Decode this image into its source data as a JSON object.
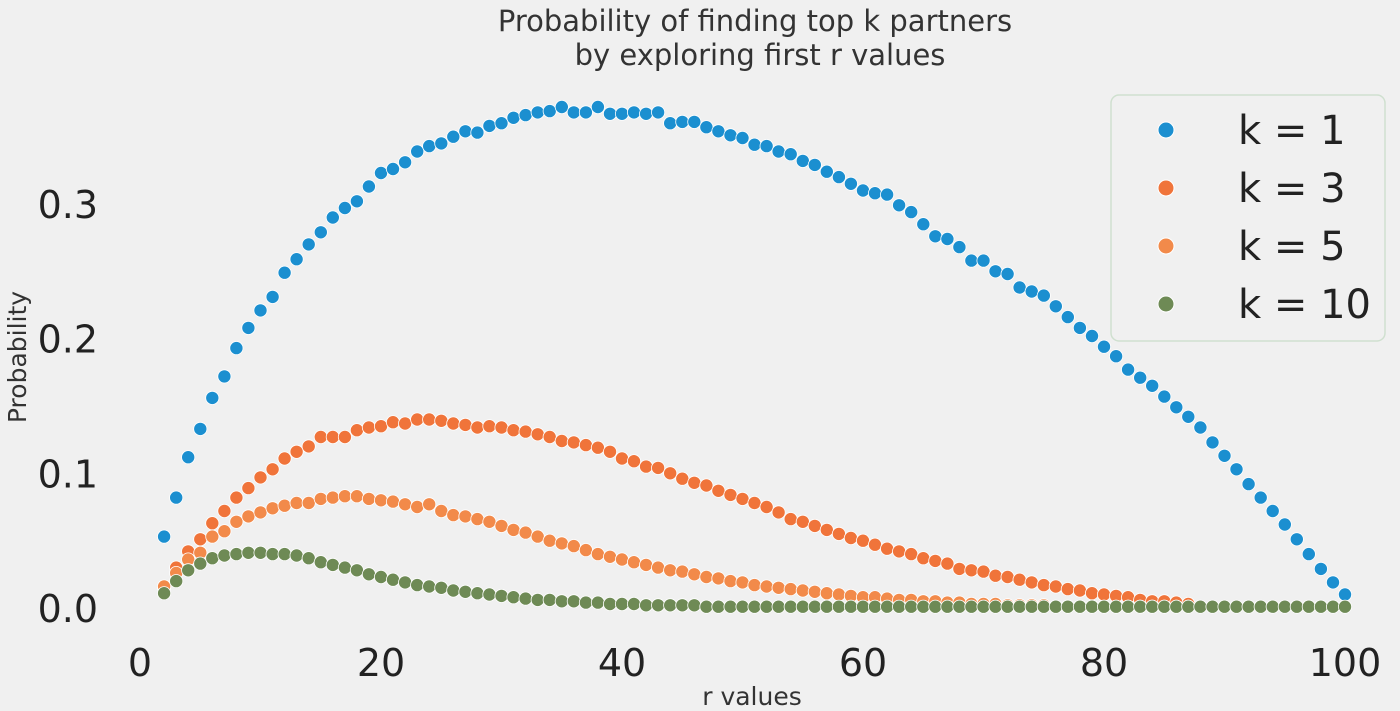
{
  "chart_data": {
    "type": "scatter",
    "title": "Probability of finding top k partners",
    "subtitle": "by exploring first r values",
    "xlabel": "r values",
    "ylabel": "Probability",
    "xlim": [
      -2,
      102
    ],
    "ylim": [
      -0.0143,
      0.38
    ],
    "x_ticks": [
      "0",
      "20",
      "40",
      "60",
      "80",
      "100"
    ],
    "y_ticks": [
      "0.0",
      "0.1",
      "0.2",
      "0.3"
    ],
    "grid": false,
    "legend_position": "top-right",
    "series": [
      {
        "name": "k = 1",
        "color": "#1b8fd0",
        "x": [
          2,
          3,
          4,
          5,
          6,
          7,
          8,
          9,
          10,
          11,
          12,
          13,
          14,
          15,
          16,
          17,
          18,
          19,
          20,
          21,
          22,
          23,
          24,
          25,
          26,
          27,
          28,
          29,
          30,
          31,
          32,
          33,
          34,
          35,
          36,
          37,
          38,
          39,
          40,
          41,
          42,
          43,
          44,
          45,
          46,
          47,
          48,
          49,
          50,
          51,
          52,
          53,
          54,
          55,
          56,
          57,
          58,
          59,
          60,
          61,
          62,
          63,
          64,
          65,
          66,
          67,
          68,
          69,
          70,
          71,
          72,
          73,
          74,
          75,
          76,
          77,
          78,
          79,
          80,
          81,
          82,
          83,
          84,
          85,
          86,
          87,
          88,
          89,
          90,
          91,
          92,
          93,
          94,
          95,
          96,
          97,
          98,
          99,
          100
        ],
        "y": [
          0.053,
          0.082,
          0.112,
          0.133,
          0.156,
          0.172,
          0.193,
          0.208,
          0.221,
          0.231,
          0.249,
          0.259,
          0.27,
          0.279,
          0.29,
          0.297,
          0.302,
          0.313,
          0.323,
          0.326,
          0.331,
          0.339,
          0.343,
          0.345,
          0.35,
          0.354,
          0.353,
          0.358,
          0.36,
          0.364,
          0.366,
          0.368,
          0.369,
          0.372,
          0.368,
          0.368,
          0.372,
          0.367,
          0.367,
          0.368,
          0.367,
          0.368,
          0.36,
          0.361,
          0.361,
          0.357,
          0.354,
          0.351,
          0.349,
          0.344,
          0.343,
          0.339,
          0.337,
          0.332,
          0.329,
          0.324,
          0.32,
          0.315,
          0.31,
          0.308,
          0.307,
          0.299,
          0.294,
          0.285,
          0.276,
          0.274,
          0.268,
          0.258,
          0.258,
          0.25,
          0.248,
          0.238,
          0.235,
          0.232,
          0.224,
          0.216,
          0.208,
          0.202,
          0.194,
          0.187,
          0.177,
          0.171,
          0.165,
          0.157,
          0.149,
          0.142,
          0.134,
          0.123,
          0.113,
          0.103,
          0.092,
          0.082,
          0.072,
          0.062,
          0.051,
          0.04,
          0.029,
          0.019,
          0.01
        ]
      },
      {
        "name": "k = 3",
        "color": "#f0743a",
        "x": [
          2,
          3,
          4,
          5,
          6,
          7,
          8,
          9,
          10,
          11,
          12,
          13,
          14,
          15,
          16,
          17,
          18,
          19,
          20,
          21,
          22,
          23,
          24,
          25,
          26,
          27,
          28,
          29,
          30,
          31,
          32,
          33,
          34,
          35,
          36,
          37,
          38,
          39,
          40,
          41,
          42,
          43,
          44,
          45,
          46,
          47,
          48,
          49,
          50,
          51,
          52,
          53,
          54,
          55,
          56,
          57,
          58,
          59,
          60,
          61,
          62,
          63,
          64,
          65,
          66,
          67,
          68,
          69,
          70,
          71,
          72,
          73,
          74,
          75,
          76,
          77,
          78,
          79,
          80,
          81,
          82,
          83,
          84,
          85,
          86,
          87
        ],
        "y": [
          0.015,
          0.03,
          0.042,
          0.051,
          0.063,
          0.072,
          0.082,
          0.089,
          0.097,
          0.103,
          0.111,
          0.116,
          0.12,
          0.127,
          0.127,
          0.127,
          0.132,
          0.134,
          0.135,
          0.138,
          0.137,
          0.14,
          0.14,
          0.139,
          0.137,
          0.136,
          0.134,
          0.135,
          0.134,
          0.132,
          0.131,
          0.129,
          0.127,
          0.124,
          0.123,
          0.121,
          0.119,
          0.116,
          0.111,
          0.109,
          0.105,
          0.104,
          0.1,
          0.096,
          0.093,
          0.091,
          0.087,
          0.084,
          0.081,
          0.078,
          0.075,
          0.071,
          0.066,
          0.064,
          0.061,
          0.058,
          0.055,
          0.052,
          0.05,
          0.047,
          0.044,
          0.042,
          0.04,
          0.037,
          0.035,
          0.033,
          0.029,
          0.028,
          0.027,
          0.024,
          0.023,
          0.021,
          0.019,
          0.017,
          0.016,
          0.014,
          0.013,
          0.011,
          0.01,
          0.009,
          0.008,
          0.006,
          0.005,
          0.005,
          0.004,
          0.003
        ]
      },
      {
        "name": "k = 5",
        "color": "#f28a4a",
        "x": [
          2,
          3,
          4,
          5,
          6,
          7,
          8,
          9,
          10,
          11,
          12,
          13,
          14,
          15,
          16,
          17,
          18,
          19,
          20,
          21,
          22,
          23,
          24,
          25,
          26,
          27,
          28,
          29,
          30,
          31,
          32,
          33,
          34,
          35,
          36,
          37,
          38,
          39,
          40,
          41,
          42,
          43,
          44,
          45,
          46,
          47,
          48,
          49,
          50,
          51,
          52,
          53,
          54,
          55,
          56,
          57,
          58,
          59,
          60,
          61,
          62,
          63,
          64,
          65,
          66,
          67,
          68,
          69,
          70,
          71,
          72,
          73,
          74,
          75,
          76,
          77,
          78,
          79,
          80,
          81,
          82,
          83,
          84,
          85,
          86,
          87
        ],
        "y": [
          0.016,
          0.026,
          0.036,
          0.041,
          0.053,
          0.057,
          0.064,
          0.068,
          0.071,
          0.074,
          0.076,
          0.078,
          0.078,
          0.081,
          0.082,
          0.083,
          0.083,
          0.081,
          0.08,
          0.079,
          0.077,
          0.075,
          0.077,
          0.072,
          0.069,
          0.068,
          0.066,
          0.064,
          0.061,
          0.058,
          0.056,
          0.053,
          0.05,
          0.048,
          0.046,
          0.043,
          0.04,
          0.038,
          0.036,
          0.034,
          0.032,
          0.03,
          0.028,
          0.027,
          0.025,
          0.023,
          0.022,
          0.02,
          0.019,
          0.017,
          0.016,
          0.015,
          0.014,
          0.013,
          0.012,
          0.011,
          0.01,
          0.009,
          0.008,
          0.008,
          0.007,
          0.006,
          0.006,
          0.005,
          0.005,
          0.004,
          0.004,
          0.003,
          0.003,
          0.003,
          0.002,
          0.002,
          0.002,
          0.002,
          0.001,
          0.001,
          0.001,
          0.001,
          0.001,
          0.001,
          0.001,
          0.001,
          0.001,
          0.001,
          0.001,
          0.001
        ]
      },
      {
        "name": "k = 10",
        "color": "#6e8a55",
        "x": [
          2,
          3,
          4,
          5,
          6,
          7,
          8,
          9,
          10,
          11,
          12,
          13,
          14,
          15,
          16,
          17,
          18,
          19,
          20,
          21,
          22,
          23,
          24,
          25,
          26,
          27,
          28,
          29,
          30,
          31,
          32,
          33,
          34,
          35,
          36,
          37,
          38,
          39,
          40,
          41,
          42,
          43,
          44,
          45,
          46,
          47,
          48,
          49,
          50,
          51,
          52,
          53,
          54,
          55,
          56,
          57,
          58,
          59,
          60,
          61,
          62,
          63,
          64,
          65,
          66,
          67,
          68,
          69,
          70,
          71,
          72,
          73,
          74,
          75,
          76,
          77,
          78,
          79,
          80,
          81,
          82,
          83,
          84,
          85,
          86,
          87,
          88,
          89,
          90,
          91,
          92,
          93,
          94,
          95,
          96,
          97,
          98,
          99,
          100
        ],
        "y": [
          0.011,
          0.02,
          0.028,
          0.033,
          0.037,
          0.039,
          0.04,
          0.041,
          0.041,
          0.04,
          0.04,
          0.039,
          0.037,
          0.034,
          0.032,
          0.03,
          0.028,
          0.025,
          0.023,
          0.021,
          0.019,
          0.017,
          0.016,
          0.015,
          0.013,
          0.012,
          0.011,
          0.01,
          0.009,
          0.008,
          0.007,
          0.006,
          0.006,
          0.005,
          0.005,
          0.004,
          0.004,
          0.003,
          0.003,
          0.003,
          0.002,
          0.002,
          0.002,
          0.002,
          0.002,
          0.001,
          0.001,
          0.001,
          0.001,
          0.001,
          0.001,
          0.001,
          0.001,
          0.001,
          0.001,
          0.001,
          0.001,
          0.001,
          0.001,
          0.001,
          0.001,
          0.001,
          0.001,
          0.001,
          0.001,
          0.001,
          0.001,
          0.001,
          0.001,
          0.001,
          0.001,
          0.001,
          0.001,
          0.001,
          0.001,
          0.001,
          0.001,
          0.001,
          0.001,
          0.001,
          0.001,
          0.001,
          0.001,
          0.001,
          0.001,
          0.001,
          0.001,
          0.001,
          0.001,
          0.001,
          0.001,
          0.001,
          0.001,
          0.001,
          0.001,
          0.001,
          0.001,
          0.001,
          0.001
        ]
      }
    ]
  }
}
